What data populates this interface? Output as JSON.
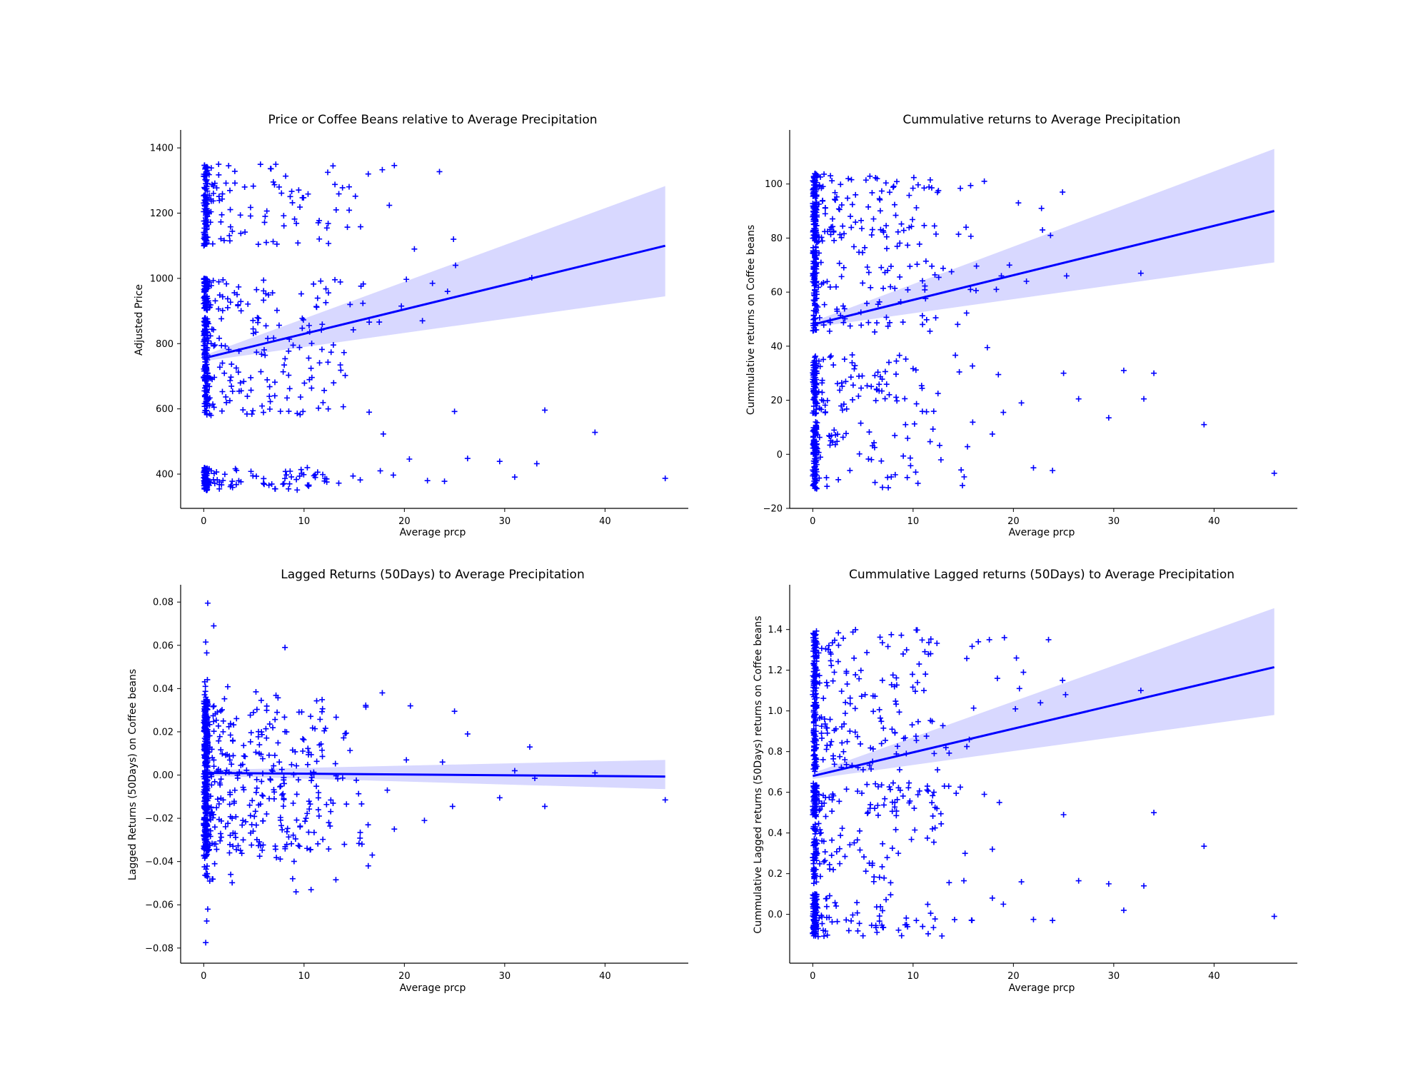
{
  "chart_data": [
    {
      "type": "scatter",
      "title": "Price or Coffee Beans relative to Average Precipitation",
      "xlabel": "Average prcp",
      "ylabel": "Adjusted Price",
      "xlim": [
        -2.3,
        48.3
      ],
      "ylim": [
        295,
        1455
      ],
      "xticks": [
        0,
        10,
        20,
        30,
        40
      ],
      "yticks": [
        400,
        600,
        800,
        1000,
        1200,
        1400
      ],
      "tick_labels_y": [
        "400",
        "600",
        "800",
        "1000",
        "1200",
        "1400"
      ],
      "tick_labels_x": [
        "0",
        "10",
        "20",
        "30",
        "40"
      ],
      "marker": "+",
      "color": "#0000ff",
      "band_color": "#d8d8ff",
      "grid": false,
      "regression": {
        "x0": 0,
        "y0": 755,
        "x1": 46,
        "y1": 1100
      },
      "ci_at_x_end": [
        945,
        1283
      ],
      "gen": {
        "seed": 11,
        "ymin": 350,
        "ymax": 1400,
        "clusters": [
          [
            350,
            420,
            0.25
          ],
          [
            580,
            880,
            0.35
          ],
          [
            900,
            1000,
            0.12
          ],
          [
            1100,
            1350,
            0.28
          ]
        ]
      },
      "points": [
        [
          46.0,
          387
        ],
        [
          39.0,
          528
        ],
        [
          34.0,
          596
        ],
        [
          32.7,
          1002
        ],
        [
          33.2,
          432
        ],
        [
          31.0,
          391
        ],
        [
          29.5,
          439
        ],
        [
          26.3,
          448
        ],
        [
          24.0,
          378
        ],
        [
          22.3,
          380
        ],
        [
          20.5,
          446
        ],
        [
          25.0,
          592
        ],
        [
          24.9,
          1120
        ],
        [
          23.5,
          1327
        ],
        [
          19.0,
          1346
        ],
        [
          18.5,
          1224
        ],
        [
          21.0,
          1090
        ],
        [
          24.3,
          960
        ],
        [
          25.1,
          1040
        ],
        [
          22.8,
          985
        ],
        [
          20.2,
          997
        ],
        [
          19.7,
          915
        ],
        [
          21.8,
          870
        ],
        [
          17.8,
          1333
        ],
        [
          16.4,
          1320
        ],
        [
          17.6,
          410
        ],
        [
          18.9,
          397
        ],
        [
          17.9,
          523
        ],
        [
          17.5,
          866
        ],
        [
          14.5,
          1209
        ],
        [
          13.2,
          1210
        ]
      ]
    },
    {
      "type": "scatter",
      "title": "Cummulative returns to Average Precipitation",
      "xlabel": "Average prcp",
      "ylabel": "Cummulative returns on Coffee beans",
      "xlim": [
        -2.3,
        48.3
      ],
      "ylim": [
        -20,
        120
      ],
      "xticks": [
        0,
        10,
        20,
        30,
        40
      ],
      "yticks": [
        -20,
        0,
        20,
        40,
        60,
        80,
        100
      ],
      "tick_labels_y": [
        "−20",
        "0",
        "20",
        "40",
        "60",
        "80",
        "100"
      ],
      "tick_labels_x": [
        "0",
        "10",
        "20",
        "30",
        "40"
      ],
      "marker": "+",
      "color": "#0000ff",
      "band_color": "#d8d8ff",
      "grid": false,
      "regression": {
        "x0": 0,
        "y0": 48,
        "x1": 46,
        "y1": 90
      },
      "ci_at_x_end": [
        71,
        113
      ],
      "gen": {
        "seed": 23,
        "ymin": -13,
        "ymax": 104,
        "clusters": [
          [
            -13,
            12,
            0.2
          ],
          [
            15,
            37,
            0.25
          ],
          [
            45,
            80,
            0.25
          ],
          [
            80,
            104,
            0.3
          ]
        ]
      },
      "points": [
        [
          46.0,
          -7
        ],
        [
          39.0,
          11
        ],
        [
          34.0,
          30
        ],
        [
          33.0,
          20.5
        ],
        [
          32.7,
          67
        ],
        [
          31.0,
          31
        ],
        [
          29.5,
          13.5
        ],
        [
          26.5,
          20.5
        ],
        [
          25.0,
          30
        ],
        [
          25.3,
          66
        ],
        [
          24.9,
          97
        ],
        [
          23.9,
          -6
        ],
        [
          22.0,
          -5
        ],
        [
          20.8,
          19
        ],
        [
          19.0,
          15.5
        ],
        [
          18.5,
          29.5
        ],
        [
          17.9,
          7.5
        ],
        [
          17.4,
          39.5
        ],
        [
          17.1,
          101
        ],
        [
          19.6,
          70
        ],
        [
          20.5,
          93
        ],
        [
          21.3,
          64
        ],
        [
          22.9,
          83
        ],
        [
          23.7,
          81
        ],
        [
          22.8,
          91
        ],
        [
          18.3,
          61
        ],
        [
          18.8,
          66
        ]
      ]
    },
    {
      "type": "scatter",
      "title": "Lagged Returns (50Days) to Average Precipitation",
      "xlabel": "Average prcp",
      "ylabel": "Lagged Returns (50Days) on Coffee beans",
      "xlim": [
        -2.3,
        48.3
      ],
      "ylim": [
        -0.087,
        0.088
      ],
      "xticks": [
        0,
        10,
        20,
        30,
        40
      ],
      "yticks": [
        -0.08,
        -0.06,
        -0.04,
        -0.02,
        0.0,
        0.02,
        0.04,
        0.06,
        0.08
      ],
      "tick_labels_y": [
        "−0.08",
        "−0.06",
        "−0.04",
        "−0.02",
        "0.00",
        "0.02",
        "0.04",
        "0.06",
        "0.08"
      ],
      "tick_labels_x": [
        "0",
        "10",
        "20",
        "30",
        "40"
      ],
      "marker": "+",
      "color": "#0000ff",
      "band_color": "#d8d8ff",
      "grid": false,
      "regression": {
        "x0": 0,
        "y0": 0.001,
        "x1": 46,
        "y1": -0.0007
      },
      "ci_at_x_end": [
        -0.0065,
        0.007
      ],
      "gen": {
        "seed": 37,
        "ymin": -0.05,
        "ymax": 0.05,
        "clusters": [
          [
            -0.035,
            0.035,
            0.8
          ],
          [
            -0.05,
            0.045,
            0.2
          ]
        ]
      },
      "points": [
        [
          46.0,
          -0.0115
        ],
        [
          39.0,
          0.001
        ],
        [
          34.0,
          -0.0145
        ],
        [
          33.0,
          -0.0015
        ],
        [
          32.5,
          0.013
        ],
        [
          31.0,
          0.002
        ],
        [
          29.5,
          -0.0105
        ],
        [
          26.3,
          0.019
        ],
        [
          25.0,
          0.0295
        ],
        [
          24.8,
          -0.0145
        ],
        [
          23.8,
          0.006
        ],
        [
          22.0,
          -0.021
        ],
        [
          20.6,
          0.032
        ],
        [
          20.2,
          0.007
        ],
        [
          19.0,
          -0.025
        ],
        [
          18.3,
          -0.007
        ],
        [
          17.8,
          0.038
        ],
        [
          16.8,
          -0.037
        ],
        [
          16.4,
          -0.042
        ],
        [
          0.4,
          0.0795
        ],
        [
          1.0,
          0.069
        ],
        [
          8.1,
          0.059
        ],
        [
          0.2,
          0.0615
        ],
        [
          0.3,
          0.0565
        ],
        [
          0.3,
          -0.0675
        ],
        [
          0.2,
          -0.0775
        ],
        [
          0.4,
          -0.062
        ],
        [
          10.7,
          -0.053
        ],
        [
          9.2,
          -0.054
        ],
        [
          0.6,
          -0.049
        ]
      ]
    },
    {
      "type": "scatter",
      "title": "Cummulative Lagged returns (50Days) to Average Precipitation",
      "xlabel": "Average prcp",
      "ylabel": "Cummulative Lagged returns (50Days) returns on Coffee beans",
      "xlim": [
        -2.3,
        48.3
      ],
      "ylim": [
        -0.24,
        1.62
      ],
      "xticks": [
        0,
        10,
        20,
        30,
        40
      ],
      "yticks": [
        0.0,
        0.2,
        0.4,
        0.6,
        0.8,
        1.0,
        1.2,
        1.4
      ],
      "tick_labels_y": [
        "0.0",
        "0.2",
        "0.4",
        "0.6",
        "0.8",
        "1.0",
        "1.2",
        "1.4"
      ],
      "tick_labels_x": [
        "0",
        "10",
        "20",
        "30",
        "40"
      ],
      "marker": "+",
      "color": "#0000ff",
      "band_color": "#d8d8ff",
      "grid": false,
      "regression": {
        "x0": 0,
        "y0": 0.68,
        "x1": 46,
        "y1": 1.215
      },
      "ci_at_x_end": [
        0.98,
        1.505
      ],
      "gen": {
        "seed": 53,
        "ymin": -0.11,
        "ymax": 1.4,
        "clusters": [
          [
            -0.11,
            0.1,
            0.2
          ],
          [
            0.15,
            0.45,
            0.15
          ],
          [
            0.48,
            0.65,
            0.2
          ],
          [
            0.7,
            1.4,
            0.45
          ]
        ]
      },
      "points": [
        [
          46.0,
          -0.01
        ],
        [
          39.0,
          0.335
        ],
        [
          34.0,
          0.5
        ],
        [
          33.0,
          0.14
        ],
        [
          32.7,
          1.1
        ],
        [
          31.0,
          0.02
        ],
        [
          29.5,
          0.15
        ],
        [
          26.5,
          0.165
        ],
        [
          25.0,
          0.49
        ],
        [
          25.2,
          1.08
        ],
        [
          24.9,
          1.15
        ],
        [
          23.9,
          -0.03
        ],
        [
          23.5,
          1.35
        ],
        [
          22.0,
          -0.025
        ],
        [
          20.8,
          0.16
        ],
        [
          20.6,
          1.11
        ],
        [
          19.0,
          0.05
        ],
        [
          18.6,
          0.55
        ],
        [
          17.9,
          0.08
        ],
        [
          17.9,
          0.32
        ],
        [
          17.1,
          0.59
        ],
        [
          19.1,
          1.36
        ],
        [
          17.6,
          1.35
        ],
        [
          20.2,
          1.01
        ],
        [
          21.0,
          1.19
        ],
        [
          22.7,
          1.04
        ],
        [
          20.3,
          1.26
        ],
        [
          18.4,
          1.16
        ],
        [
          16.5,
          1.34
        ]
      ]
    }
  ]
}
